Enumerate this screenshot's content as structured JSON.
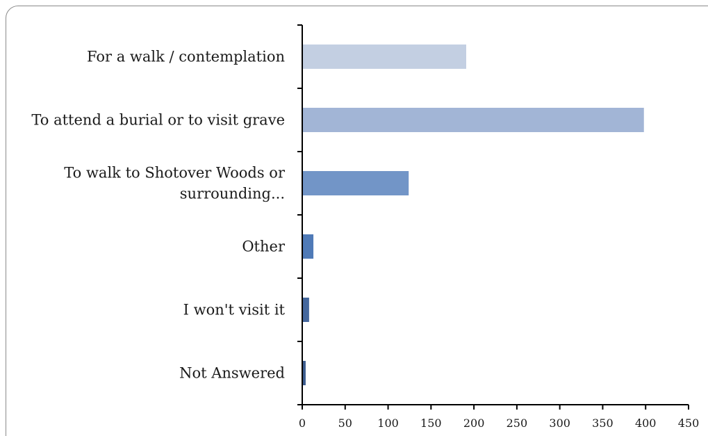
{
  "chart_data": {
    "type": "bar",
    "orientation": "horizontal",
    "categories": [
      "For a walk / contemplation",
      "To attend a burial or to visit grave",
      "To walk to Shotover Woods or surrounding...",
      "Other",
      "I won't visit it",
      "Not Answered"
    ],
    "category_lines": [
      [
        "For a walk / contemplation"
      ],
      [
        "To attend a burial or to visit grave"
      ],
      [
        "To walk to Shotover Woods or",
        "surrounding..."
      ],
      [
        "Other"
      ],
      [
        "I won't visit it"
      ],
      [
        "Not Answered"
      ]
    ],
    "values": [
      191,
      398,
      124,
      13,
      8,
      4
    ],
    "bar_colors": [
      "#c3cfe2",
      "#a2b5d6",
      "#7295c7",
      "#4f7ab7",
      "#44679d",
      "#3c5d8f"
    ],
    "xlim": [
      0,
      450
    ],
    "xticks": [
      0,
      50,
      100,
      150,
      200,
      250,
      300,
      350,
      400,
      450
    ],
    "grid": false,
    "title": "",
    "xlabel": "",
    "ylabel": ""
  }
}
